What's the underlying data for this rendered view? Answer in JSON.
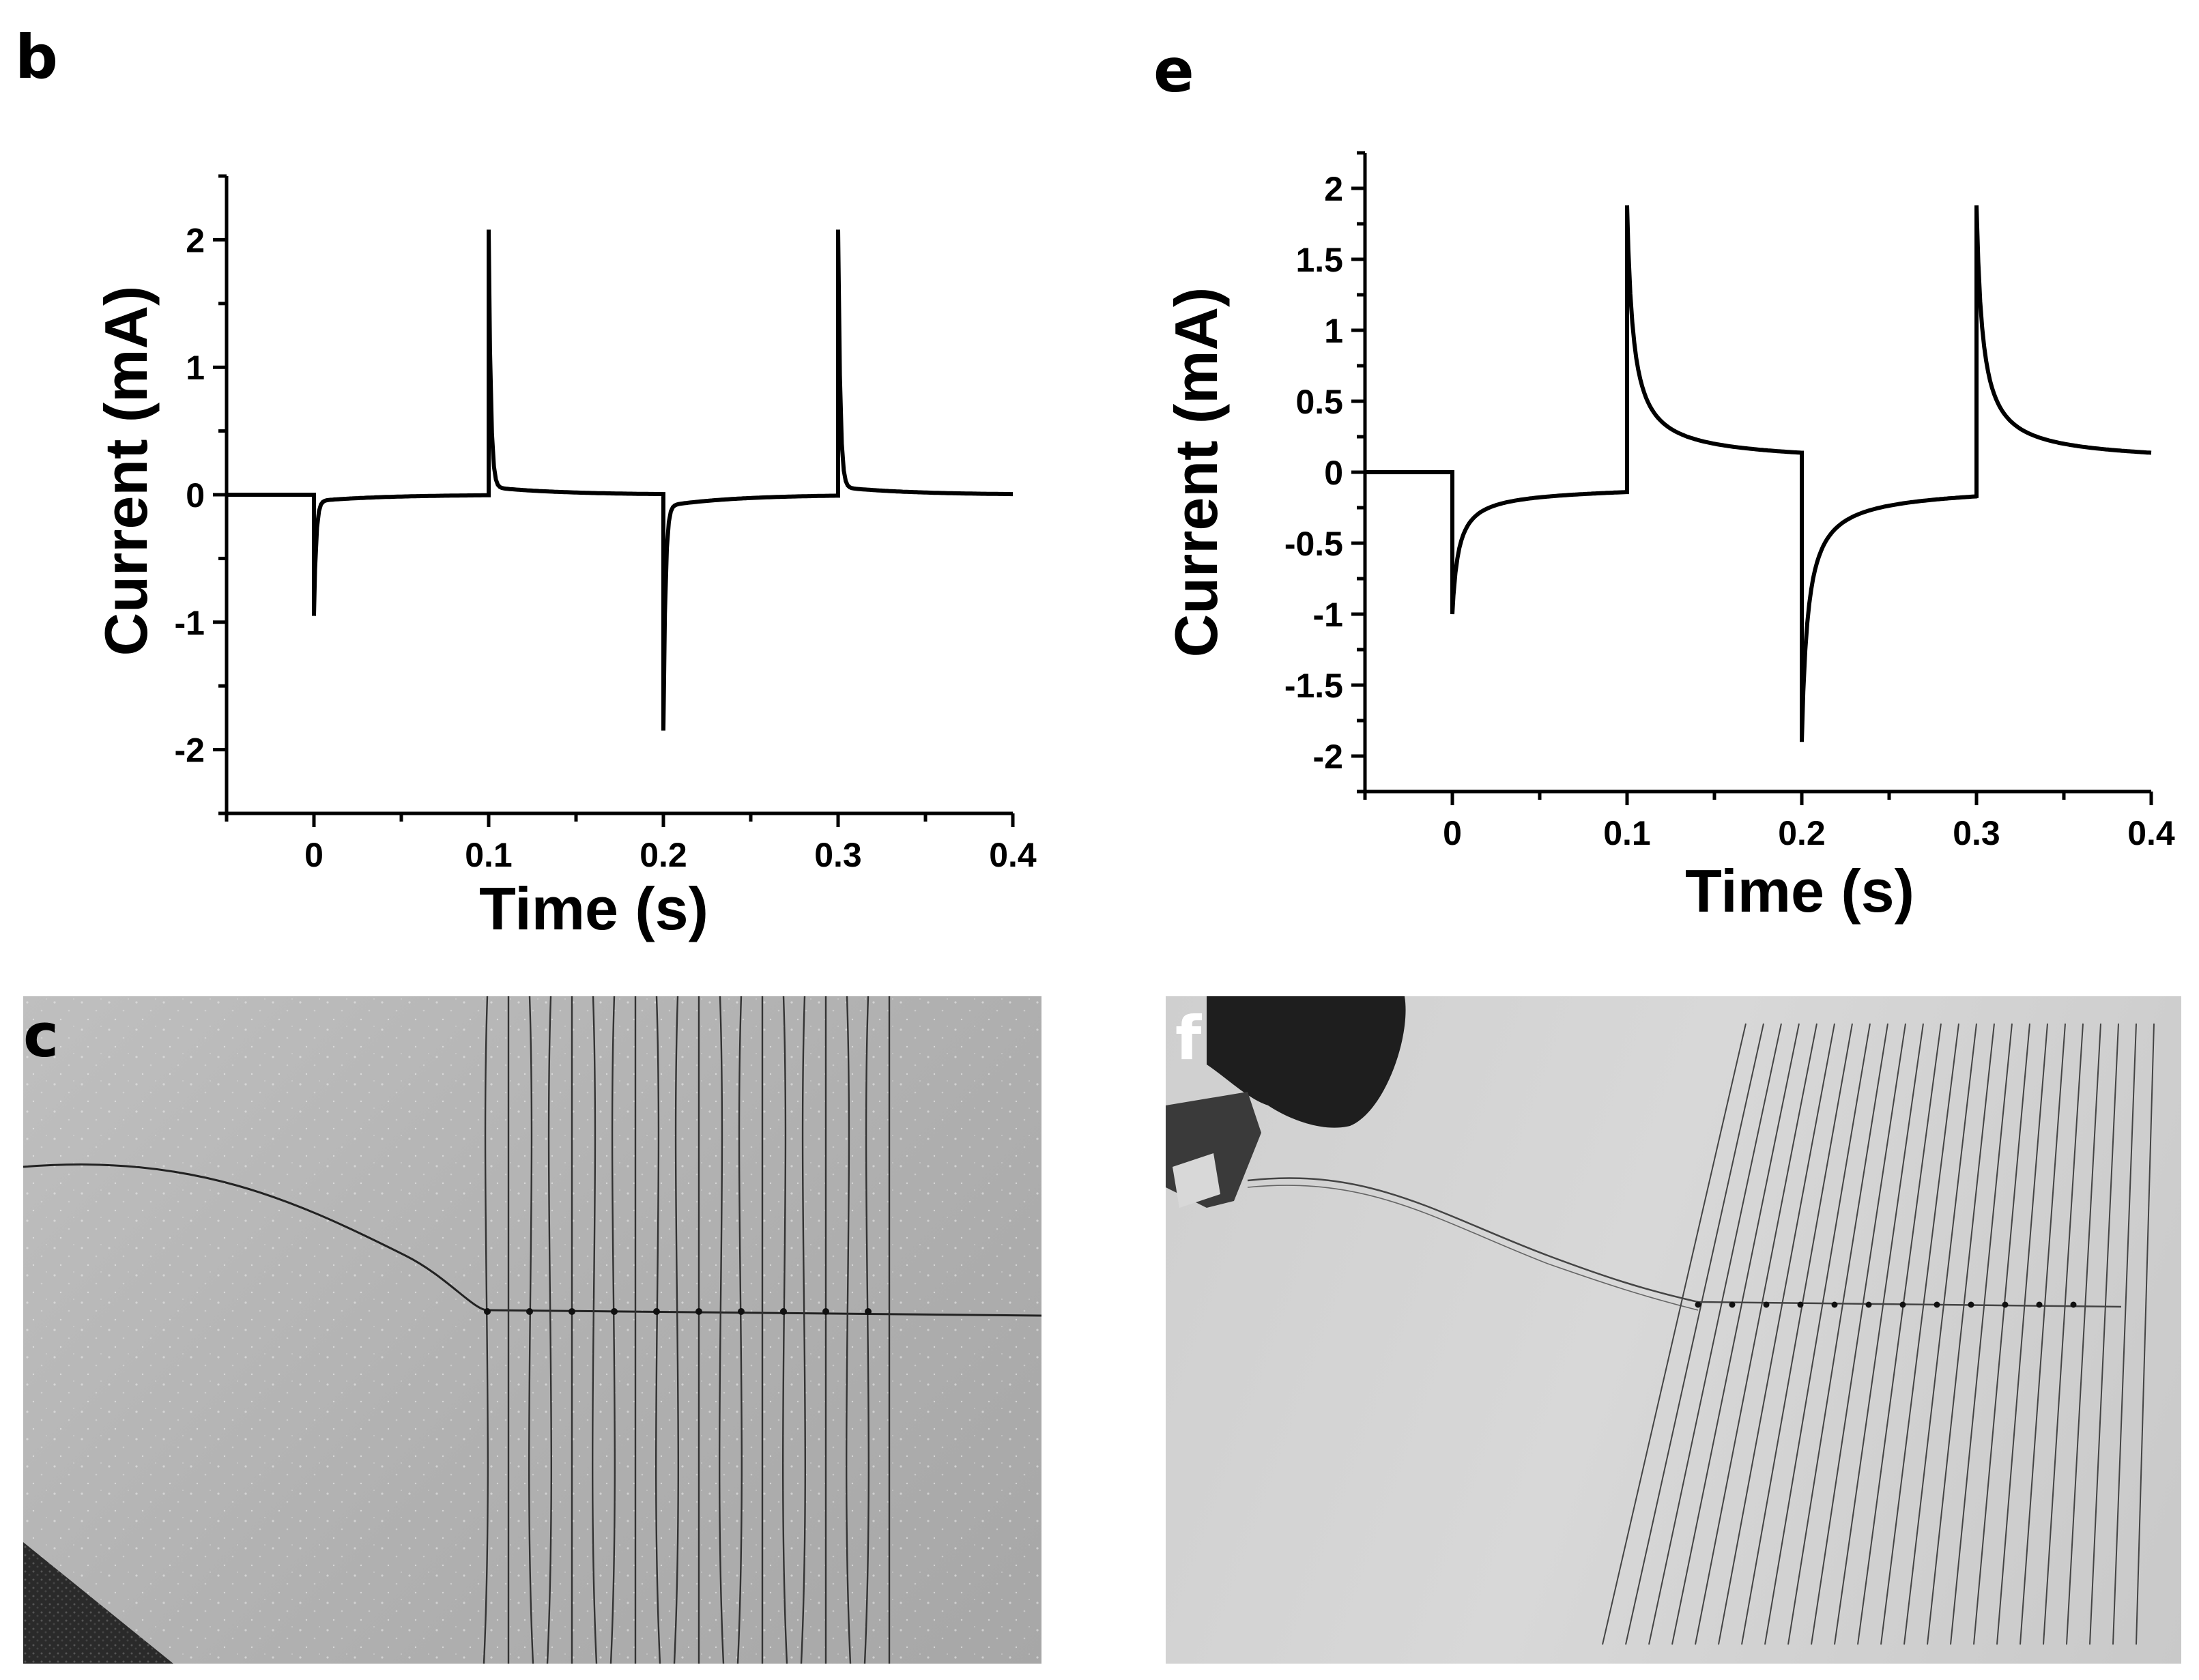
{
  "panels": {
    "b": "b",
    "e": "e",
    "c": "c",
    "f": "f"
  },
  "chart_data": [
    {
      "id": "b",
      "type": "line",
      "xlabel": "Time (s)",
      "ylabel": "Current (mA)",
      "xlim": [
        -0.05,
        0.4
      ],
      "ylim": [
        -2.5,
        2.5
      ],
      "xticks": [
        0,
        0.1,
        0.2,
        0.3,
        0.4
      ],
      "yticks": [
        -2,
        -1,
        0,
        1,
        2
      ],
      "tick_labels_x": [
        "0",
        "0.1",
        "0.2",
        "0.3",
        "0.4"
      ],
      "tick_labels_y": [
        "-2",
        "-1",
        "0",
        "1",
        "2"
      ],
      "spike_pattern": "sharp",
      "events": [
        {
          "t": 0.0,
          "peak": -0.95,
          "tail": -0.05
        },
        {
          "t": 0.1,
          "peak": 2.08,
          "tail": 0.06
        },
        {
          "t": 0.2,
          "peak": -1.85,
          "tail": -0.09
        },
        {
          "t": 0.3,
          "peak": 2.08,
          "tail": 0.06
        }
      ],
      "series": [
        {
          "x": [
            -0.05,
            -0.001,
            0.0,
            0.001,
            0.01,
            0.05,
            0.099,
            0.1,
            0.101,
            0.11,
            0.15,
            0.199,
            0.2,
            0.201,
            0.21,
            0.25,
            0.299,
            0.3,
            0.301,
            0.31,
            0.35,
            0.4
          ],
          "values": [
            0.0,
            0.0,
            -0.95,
            -0.05,
            -0.05,
            -0.01,
            0.0,
            2.08,
            0.1,
            0.05,
            0.02,
            0.0,
            -1.85,
            -0.08,
            -0.09,
            -0.02,
            0.0,
            2.08,
            0.1,
            0.05,
            0.02,
            0.0
          ]
        }
      ],
      "grid": false
    },
    {
      "id": "e",
      "type": "line",
      "xlabel": "Time (s)",
      "ylabel": "Current (mA)",
      "xlim": [
        -0.05,
        0.4
      ],
      "ylim": [
        -2.25,
        2.25
      ],
      "xticks": [
        0,
        0.1,
        0.2,
        0.3,
        0.4
      ],
      "yticks": [
        -2,
        -1.5,
        -1,
        -0.5,
        0,
        0.5,
        1,
        1.5,
        2
      ],
      "tick_labels_x": [
        "0",
        "0.1",
        "0.2",
        "0.3",
        "0.4"
      ],
      "tick_labels_y": [
        "-2",
        "-1.5",
        "-1",
        "-0.5",
        "0",
        "0.5",
        "1",
        "1.5",
        "2"
      ],
      "spike_pattern": "decay",
      "events": [
        {
          "t": 0.0,
          "peak": -1.0,
          "tail": -0.13
        },
        {
          "t": 0.1,
          "peak": 1.88,
          "tail": 0.09
        },
        {
          "t": 0.2,
          "peak": -1.9,
          "tail": -0.13
        },
        {
          "t": 0.3,
          "peak": 1.88,
          "tail": 0.09
        }
      ],
      "series": [
        {
          "x": [
            -0.05,
            0.0,
            0.0,
            0.005,
            0.02,
            0.05,
            0.1,
            0.1,
            0.105,
            0.12,
            0.15,
            0.2,
            0.2,
            0.205,
            0.22,
            0.25,
            0.3,
            0.3,
            0.305,
            0.32,
            0.35,
            0.4
          ],
          "values": [
            0.0,
            0.0,
            -1.0,
            -0.55,
            -0.3,
            -0.2,
            -0.13,
            1.88,
            0.95,
            0.38,
            0.18,
            0.09,
            -1.9,
            -0.95,
            -0.4,
            -0.22,
            -0.13,
            1.88,
            0.95,
            0.38,
            0.18,
            0.09
          ]
        }
      ],
      "grid": false
    }
  ]
}
